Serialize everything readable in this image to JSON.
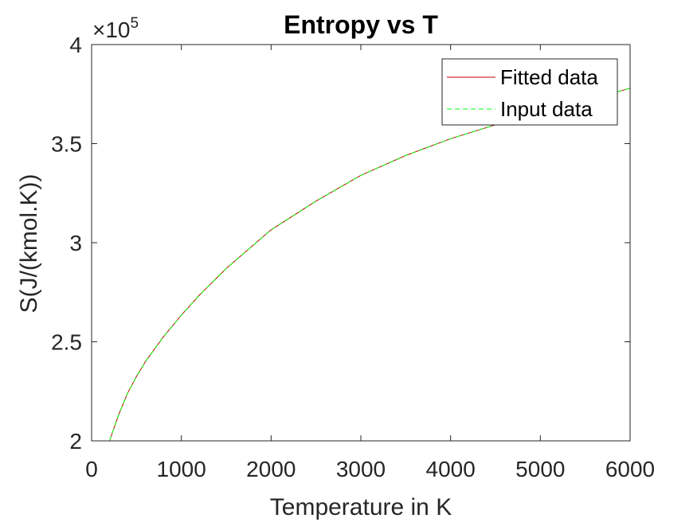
{
  "chart_data": {
    "type": "line",
    "title": "Entropy vs T",
    "xlabel": "Temperature in K",
    "ylabel": "S(J/(kmol.K))",
    "xlim": [
      0,
      6000
    ],
    "ylim": [
      200000,
      400000
    ],
    "x_ticks": [
      "0",
      "1000",
      "2000",
      "3000",
      "4000",
      "5000",
      "6000"
    ],
    "y_ticks": [
      "2",
      "2.5",
      "3",
      "3.5",
      "4"
    ],
    "y_exponent_multiplier": "×10",
    "y_exponent_power": "5",
    "grid": false,
    "legend_position": "top-right",
    "series": [
      {
        "name": "Fitted data",
        "color": "#c00000",
        "style": "solid",
        "x": [
          200,
          300,
          400,
          500,
          600,
          800,
          1000,
          1200,
          1500,
          2000,
          2500,
          3000,
          3500,
          4000,
          4500,
          5000,
          5500,
          6000
        ],
        "y": [
          200000,
          213000,
          224000,
          232500,
          240000,
          252500,
          263500,
          273500,
          287000,
          306500,
          321000,
          334000,
          344000,
          352500,
          359500,
          365500,
          371500,
          378000
        ]
      },
      {
        "name": "Input data",
        "color": "#00ff00",
        "style": "dashed",
        "x": [
          200,
          300,
          400,
          500,
          600,
          800,
          1000,
          1200,
          1500,
          2000,
          2500,
          3000,
          3500,
          4000,
          4500,
          5000,
          5500,
          6000
        ],
        "y": [
          200000,
          213000,
          224000,
          232500,
          240000,
          252500,
          263500,
          273500,
          287000,
          306500,
          321000,
          334000,
          344000,
          352500,
          359500,
          365500,
          371500,
          378000
        ]
      }
    ]
  }
}
